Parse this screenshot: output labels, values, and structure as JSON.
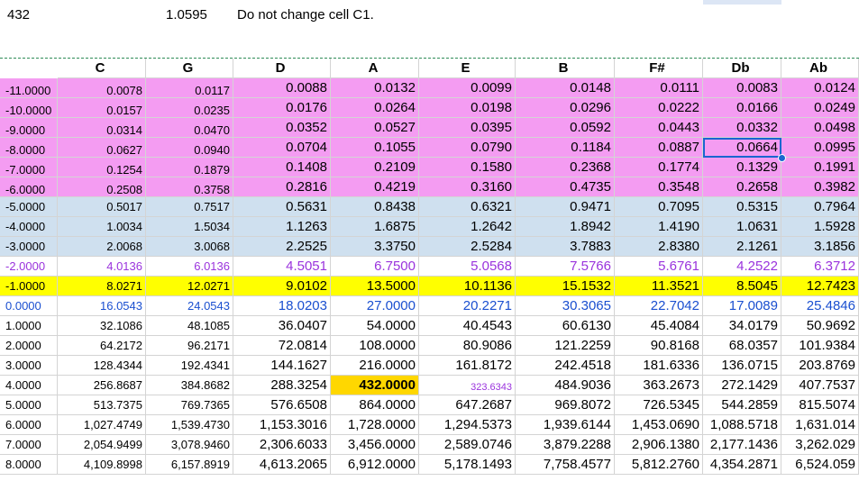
{
  "top": {
    "a1": "432",
    "b1": "1.0595",
    "c1": "Do not change cell C1."
  },
  "headers": [
    "C",
    "G",
    "D",
    "A",
    "E",
    "B",
    "F#",
    "Db",
    "Ab"
  ],
  "rows": [
    {
      "id": "-11.0000",
      "band": "pink",
      "vals": [
        "0.0078",
        "0.0117",
        "0.0088",
        "0.0132",
        "0.0099",
        "0.0148",
        "0.0111",
        "0.0083",
        "0.0124"
      ]
    },
    {
      "id": "-10.0000",
      "band": "pink",
      "vals": [
        "0.0157",
        "0.0235",
        "0.0176",
        "0.0264",
        "0.0198",
        "0.0296",
        "0.0222",
        "0.0166",
        "0.0249"
      ]
    },
    {
      "id": "-9.0000",
      "band": "pink",
      "vals": [
        "0.0314",
        "0.0470",
        "0.0352",
        "0.0527",
        "0.0395",
        "0.0592",
        "0.0443",
        "0.0332",
        "0.0498"
      ]
    },
    {
      "id": "-8.0000",
      "band": "pink",
      "vals": [
        "0.0627",
        "0.0940",
        "0.0704",
        "0.1055",
        "0.0790",
        "0.1184",
        "0.0887",
        "0.0664",
        "0.0995"
      ]
    },
    {
      "id": "-7.0000",
      "band": "pink",
      "vals": [
        "0.1254",
        "0.1879",
        "0.1408",
        "0.2109",
        "0.1580",
        "0.2368",
        "0.1774",
        "0.1329",
        "0.1991"
      ]
    },
    {
      "id": "-6.0000",
      "band": "pink",
      "vals": [
        "0.2508",
        "0.3758",
        "0.2816",
        "0.4219",
        "0.3160",
        "0.4735",
        "0.3548",
        "0.2658",
        "0.3982"
      ]
    },
    {
      "id": "-5.0000",
      "band": "blue",
      "vals": [
        "0.5017",
        "0.7517",
        "0.5631",
        "0.8438",
        "0.6321",
        "0.9471",
        "0.7095",
        "0.5315",
        "0.7964"
      ]
    },
    {
      "id": "-4.0000",
      "band": "blue",
      "vals": [
        "1.0034",
        "1.5034",
        "1.1263",
        "1.6875",
        "1.2642",
        "1.8942",
        "1.4190",
        "1.0631",
        "1.5928"
      ]
    },
    {
      "id": "-3.0000",
      "band": "blue",
      "vals": [
        "2.0068",
        "3.0068",
        "2.2525",
        "3.3750",
        "2.5284",
        "3.7883",
        "2.8380",
        "2.1261",
        "3.1856"
      ]
    },
    {
      "id": "-2.0000",
      "band": "white",
      "color": "purple",
      "vals": [
        "4.0136",
        "6.0136",
        "4.5051",
        "6.7500",
        "5.0568",
        "7.5766",
        "5.6761",
        "4.2522",
        "6.3712"
      ]
    },
    {
      "id": "-1.0000",
      "band": "yellow",
      "vals": [
        "8.0271",
        "12.0271",
        "9.0102",
        "13.5000",
        "10.1136",
        "15.1532",
        "11.3521",
        "8.5045",
        "12.7423"
      ]
    },
    {
      "id": "0.0000",
      "band": "white",
      "color": "blue",
      "vals": [
        "16.0543",
        "24.0543",
        "18.0203",
        "27.0000",
        "20.2271",
        "30.3065",
        "22.7042",
        "17.0089",
        "25.4846"
      ]
    },
    {
      "id": "1.0000",
      "band": "white",
      "vals": [
        "32.1086",
        "48.1085",
        "36.0407",
        "54.0000",
        "40.4543",
        "60.6130",
        "45.4084",
        "34.0179",
        "50.9692"
      ]
    },
    {
      "id": "2.0000",
      "band": "white",
      "vals": [
        "64.2172",
        "96.2171",
        "72.0814",
        "108.0000",
        "80.9086",
        "121.2259",
        "90.8168",
        "68.0357",
        "101.9384"
      ]
    },
    {
      "id": "3.0000",
      "band": "white",
      "vals": [
        "128.4344",
        "192.4341",
        "144.1627",
        "216.0000",
        "161.8172",
        "242.4518",
        "181.6336",
        "136.0715",
        "203.8769"
      ]
    },
    {
      "id": "4.0000",
      "band": "white",
      "vals": [
        "256.8687",
        "384.8682",
        "288.3254",
        "432.0000",
        "323.6343",
        "484.9036",
        "363.2673",
        "272.1429",
        "407.7537"
      ]
    },
    {
      "id": "5.0000",
      "band": "white",
      "vals": [
        "513.7375",
        "769.7365",
        "576.6508",
        "864.0000",
        "647.2687",
        "969.8072",
        "726.5345",
        "544.2859",
        "815.5074"
      ]
    },
    {
      "id": "6.0000",
      "band": "white",
      "vals": [
        "1,027.4749",
        "1,539.4730",
        "1,153.3016",
        "1,728.0000",
        "1,294.5373",
        "1,939.6144",
        "1,453.0690",
        "1,088.5718",
        "1,631.014"
      ]
    },
    {
      "id": "7.0000",
      "band": "white",
      "vals": [
        "2,054.9499",
        "3,078.9460",
        "2,306.6033",
        "3,456.0000",
        "2,589.0746",
        "3,879.2288",
        "2,906.1380",
        "2,177.1436",
        "3,262.029"
      ]
    },
    {
      "id": "8.0000",
      "band": "white",
      "vals": [
        "4,109.8998",
        "6,157.8919",
        "4,613.2065",
        "6,912.0000",
        "5,178.1493",
        "7,758.4577",
        "5,812.2760",
        "4,354.2871",
        "6,524.059"
      ]
    }
  ],
  "selected_cell": {
    "row": 3,
    "col": 7
  },
  "highlight_cell": {
    "row": 15,
    "col": 3,
    "color": "#ffd700"
  },
  "small_cell": {
    "row": 15,
    "col": 4,
    "color": "#9a33dd"
  }
}
